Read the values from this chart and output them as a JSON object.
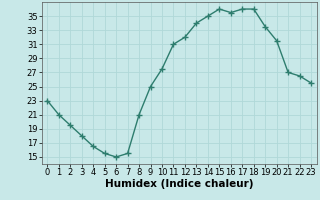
{
  "x": [
    0,
    1,
    2,
    3,
    4,
    5,
    6,
    7,
    8,
    9,
    10,
    11,
    12,
    13,
    14,
    15,
    16,
    17,
    18,
    19,
    20,
    21,
    22,
    23
  ],
  "y": [
    23,
    21,
    19.5,
    18,
    16.5,
    15.5,
    15,
    15.5,
    21,
    25,
    27.5,
    31,
    32,
    34,
    35,
    36,
    35.5,
    36,
    36,
    33.5,
    31.5,
    27,
    26.5,
    25.5
  ],
  "line_color": "#2e7d6e",
  "marker": "+",
  "bg_color": "#c8e8e8",
  "grid_color": "#b0d8d8",
  "xlabel": "Humidex (Indice chaleur)",
  "xlabel_fontsize": 7.5,
  "yticks": [
    15,
    17,
    19,
    21,
    23,
    25,
    27,
    29,
    31,
    33,
    35
  ],
  "ylim": [
    14,
    37
  ],
  "xlim": [
    -0.5,
    23.5
  ],
  "xticks": [
    0,
    1,
    2,
    3,
    4,
    5,
    6,
    7,
    8,
    9,
    10,
    11,
    12,
    13,
    14,
    15,
    16,
    17,
    18,
    19,
    20,
    21,
    22,
    23
  ],
  "tick_fontsize": 6,
  "linewidth": 1.0,
  "markersize": 4,
  "markeredgewidth": 1.0
}
